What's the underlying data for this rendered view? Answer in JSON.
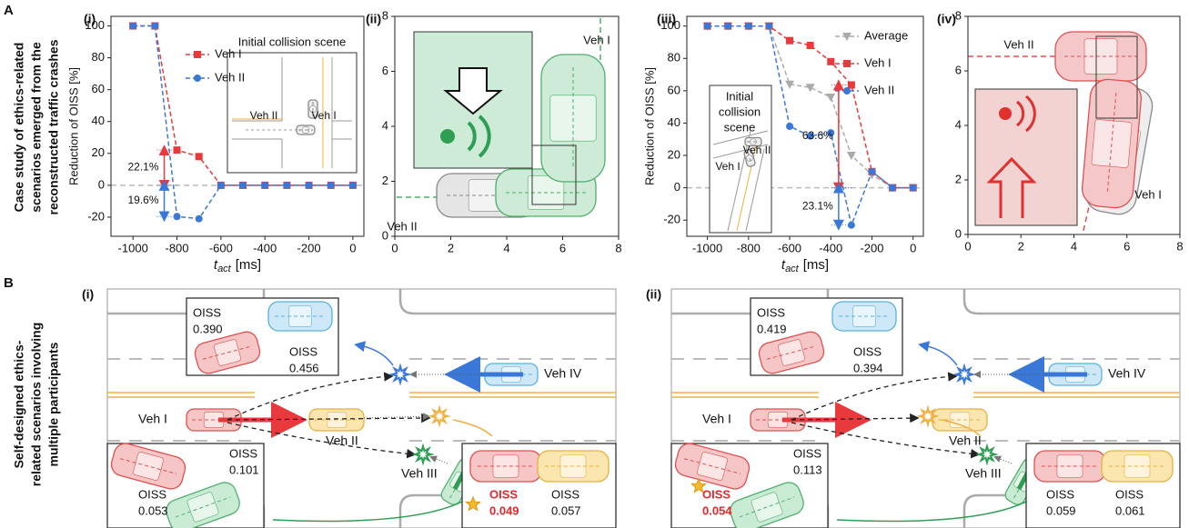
{
  "panel_labels": [
    "A",
    "B"
  ],
  "row_titles": [
    [
      "Case study of ethics-related",
      "scenarios emerged from the",
      "reconstructed traffic crashes"
    ],
    [
      "Self-designed ethics-",
      "related scenarios involving",
      "multiple participants"
    ]
  ],
  "chart_data": [
    {
      "type": "line",
      "panel": "(i)",
      "xlabel": {
        "symbol": "t",
        "subscript": "act",
        "unit": "[ms]"
      },
      "ylabel": "Reduction of OISS [%]",
      "x": [
        -1000,
        -900,
        -800,
        -700,
        -600,
        -500,
        -400,
        -300,
        -200,
        -100,
        0
      ],
      "series": [
        {
          "name": "Veh I",
          "color": "#e8393c",
          "marker": "square",
          "values": [
            100,
            100,
            22.1,
            18,
            0,
            0,
            0,
            0,
            0,
            0,
            0
          ]
        },
        {
          "name": "Veh II",
          "color": "#3a78d8",
          "marker": "circle",
          "values": [
            100,
            100,
            -19.6,
            -21,
            0,
            0,
            0,
            0,
            0,
            0,
            0
          ]
        }
      ],
      "xlim": [
        -1100,
        50
      ],
      "ylim": [
        -32,
        106
      ],
      "xticks": [
        -1000,
        -800,
        -600,
        -400,
        -200,
        0
      ],
      "yticks": [
        -20,
        0,
        20,
        40,
        60,
        80,
        100
      ],
      "zero_line": true,
      "annotations": [
        "22.1%",
        "19.6%"
      ],
      "inset": {
        "title": [
          "Initial collision scene"
        ],
        "labels": [
          "Veh II",
          "Veh I"
        ]
      }
    },
    {
      "type": "scene",
      "panel": "(ii)",
      "xlim": [
        0,
        8
      ],
      "ylim": [
        0,
        8
      ],
      "xticks": [
        0,
        2,
        4,
        6,
        8
      ],
      "yticks": [
        0,
        2,
        4,
        6,
        8
      ],
      "labels": [
        "Veh I",
        "Veh II"
      ]
    },
    {
      "type": "line",
      "panel": "(iii)",
      "xlabel": {
        "symbol": "t",
        "subscript": "act",
        "unit": "[ms]"
      },
      "ylabel": "Reduction of OISS [%]",
      "x": [
        -1000,
        -900,
        -800,
        -700,
        -600,
        -500,
        -400,
        -300,
        -200,
        -100,
        0
      ],
      "series": [
        {
          "name": "Average",
          "color": "#aaaaaa",
          "marker": "triangle",
          "values": [
            100,
            100,
            100,
            100,
            64,
            62,
            56,
            20,
            8,
            0,
            0
          ]
        },
        {
          "name": "Veh I",
          "color": "#e8393c",
          "marker": "square",
          "values": [
            100,
            100,
            100,
            100,
            91,
            88,
            78,
            63.6,
            10,
            0,
            0
          ]
        },
        {
          "name": "Veh II",
          "color": "#3a78d8",
          "marker": "circle",
          "values": [
            100,
            100,
            100,
            100,
            38,
            32,
            34,
            -23.1,
            10,
            0,
            0
          ]
        }
      ],
      "xlim": [
        -1100,
        50
      ],
      "ylim": [
        -30,
        106
      ],
      "xticks": [
        -1000,
        -800,
        -600,
        -400,
        -200,
        0
      ],
      "yticks": [
        -20,
        0,
        20,
        40,
        60,
        80,
        100
      ],
      "zero_line": true,
      "annotations": [
        "63.6%",
        "23.1%"
      ],
      "inset": {
        "title": [
          "Initial",
          "collision",
          "scene"
        ],
        "labels": [
          "Veh II",
          "Veh I"
        ]
      }
    },
    {
      "type": "scene",
      "panel": "(iv)",
      "xlim": [
        0,
        8
      ],
      "ylim": [
        0,
        8
      ],
      "xticks": [
        0,
        2,
        4,
        6,
        8
      ],
      "yticks": [
        0,
        2,
        4,
        6,
        8
      ],
      "labels": [
        "Veh II",
        "Veh I"
      ]
    }
  ],
  "scenes": [
    {
      "panel": "(i)",
      "vehicles": [
        "Veh I",
        "Veh II",
        "Veh III",
        "Veh IV"
      ],
      "boxes": [
        [
          {
            "label": "OISS",
            "value": "0.390"
          },
          {
            "label": "OISS",
            "value": "0.456"
          }
        ],
        [
          {
            "label": "OISS",
            "value": "0.101"
          },
          {
            "label": "OISS",
            "value": "0.053"
          }
        ],
        [
          {
            "label": "OISS",
            "value": "0.049",
            "highlight": true
          },
          {
            "label": "OISS",
            "value": "0.057"
          }
        ]
      ]
    },
    {
      "panel": "(ii)",
      "vehicles": [
        "Veh I",
        "Veh II",
        "Veh III",
        "Veh IV"
      ],
      "boxes": [
        [
          {
            "label": "OISS",
            "value": "0.419"
          },
          {
            "label": "OISS",
            "value": "0.394"
          }
        ],
        [
          {
            "label": "OISS",
            "value": "0.113"
          },
          {
            "label": "OISS",
            "value": "0.054",
            "highlight": true
          }
        ],
        [
          {
            "label": "OISS",
            "value": "0.059"
          },
          {
            "label": "OISS",
            "value": "0.061"
          }
        ]
      ]
    }
  ]
}
